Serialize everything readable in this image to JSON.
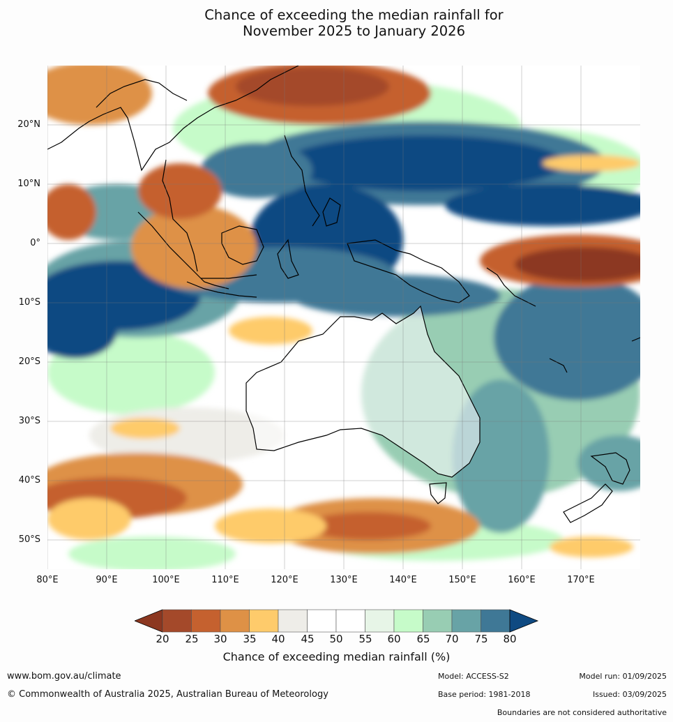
{
  "title_line1": "Chance of exceeding the median rainfall for",
  "title_line2": "November 2025 to January 2026",
  "lat_labels": [
    "20°N",
    "10°N",
    "0°",
    "10°S",
    "20°S",
    "30°S",
    "40°S",
    "50°S"
  ],
  "lon_labels": [
    "80°E",
    "90°E",
    "100°E",
    "110°E",
    "120°E",
    "130°E",
    "140°E",
    "150°E",
    "160°E",
    "170°E"
  ],
  "colorbar": {
    "ticks": [
      "20",
      "25",
      "30",
      "35",
      "40",
      "45",
      "50",
      "55",
      "60",
      "65",
      "70",
      "75",
      "80"
    ],
    "colors": [
      "#a4492a",
      "#c5612f",
      "#de9146",
      "#fecb6b",
      "#eeede8",
      "#ffffff",
      "#ffffff",
      "#e7f5e7",
      "#c6fbc9",
      "#98cdb3",
      "#68a3a6",
      "#3f7896"
    ],
    "under_color": "#8c3720",
    "over_color": "#0f4a82",
    "label": "Chance of exceeding median rainfall (%)"
  },
  "footer": {
    "url": "www.bom.gov.au/climate",
    "copyright": "© Commonwealth of Australia 2025, Australian Bureau of Meteorology",
    "model": "Model: ACCESS-S2",
    "model_run": "Model run: 01/09/2025",
    "base_period": "Base period: 1981-2018",
    "issued": "Issued: 03/09/2025",
    "boundaries": "Boundaries are not considered authoritative"
  }
}
